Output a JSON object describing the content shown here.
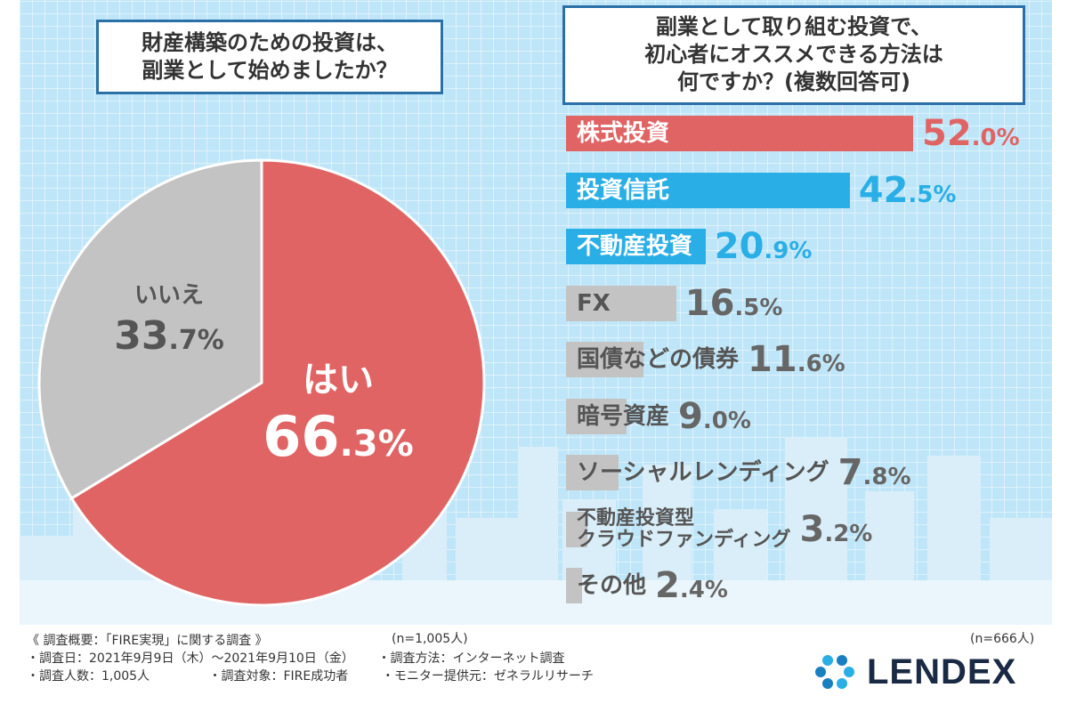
{
  "colors": {
    "red": "#e06464",
    "blue": "#2aaee6",
    "gray": "#c3c3c3",
    "frame": "#2a6fa8"
  },
  "left_question": {
    "line1": "財産構築のための投資は、",
    "line2": "副業として始めましたか？"
  },
  "right_question": {
    "line1": "副業として取り組む投資で、",
    "line2": "初心者にオススメできる方法は",
    "line3": "何ですか？(複数回答可)"
  },
  "chart_data": [
    {
      "type": "pie",
      "slices": [
        {
          "label": "はい",
          "value": 66.3,
          "int": "66",
          "dec": ".3%",
          "color": "#e06464"
        },
        {
          "label": "いいえ",
          "value": 33.7,
          "int": "33",
          "dec": ".7%",
          "color": "#c3c3c3"
        }
      ],
      "n_label": "(n=1,005人)"
    },
    {
      "type": "bar",
      "orientation": "horizontal",
      "categories": [
        "株式投資",
        "投資信託",
        "不動産投資",
        "FX",
        "国債などの債券",
        "暗号資産",
        "ソーシャルレンディング",
        "不動産投資型\nクラウドファンディング",
        "その他"
      ],
      "values": [
        52.0,
        42.5,
        20.9,
        16.5,
        11.6,
        9.0,
        7.8,
        3.2,
        2.4
      ],
      "value_int": [
        "52",
        "42",
        "20",
        "16",
        "11",
        "9",
        "7",
        "3",
        "2"
      ],
      "value_dec": [
        ".0%",
        ".5%",
        ".9%",
        ".5%",
        ".6%",
        ".0%",
        ".8%",
        ".2%",
        ".4%"
      ],
      "colors": [
        "#e06464",
        "#2aaee6",
        "#2aaee6",
        "#c3c3c3",
        "#c3c3c3",
        "#c3c3c3",
        "#c3c3c3",
        "#c3c3c3",
        "#c3c3c3"
      ],
      "n_label": "(n=666人)"
    }
  ],
  "footer": {
    "title": "《 調査概要：「FIRE実現」に関する調査 》",
    "date": "・調査日：2021年9月9日（木）～2021年9月10日（金）",
    "method": "・調査方法：インターネット調査",
    "count": "・調査人数：1,005人",
    "target": "・調査対象：FIRE成功者",
    "provider": "・モニター提供元：ゼネラルリサーチ"
  },
  "logo": {
    "text": "LENDEX",
    "icon": "lendex-logo-icon"
  }
}
